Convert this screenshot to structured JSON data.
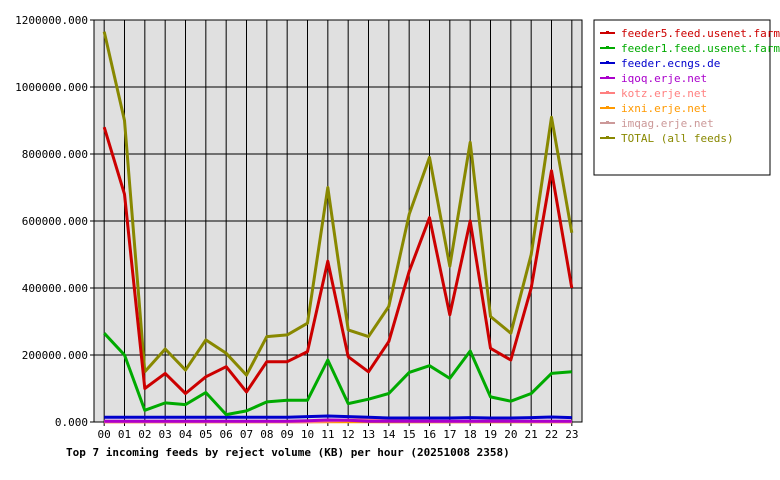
{
  "chart_data": {
    "type": "line",
    "title": "Top 7 incoming feeds by reject volume (KB) per hour (20251008 2358)",
    "xlabel": "",
    "ylabel": "",
    "categories": [
      "00",
      "01",
      "02",
      "03",
      "04",
      "05",
      "06",
      "07",
      "08",
      "09",
      "10",
      "11",
      "12",
      "13",
      "14",
      "15",
      "16",
      "17",
      "18",
      "19",
      "20",
      "21",
      "22",
      "23"
    ],
    "y_ticks": [
      "0.000",
      "200000.000",
      "400000.000",
      "600000.000",
      "800000.000",
      "1000000.000",
      "1200000.000"
    ],
    "ylim": [
      0,
      1200000
    ],
    "grid": true,
    "plot_background": "#e0e0e0",
    "legend_position": "right",
    "series": [
      {
        "name": "feeder5.feed.usenet.farm",
        "color": "#cc0000",
        "values": [
          880000,
          680000,
          100000,
          145000,
          85000,
          135000,
          165000,
          90000,
          180000,
          180000,
          210000,
          480000,
          195000,
          150000,
          240000,
          450000,
          610000,
          320000,
          600000,
          220000,
          185000,
          400000,
          750000,
          400000
        ]
      },
      {
        "name": "feeder1.feed.usenet.farm",
        "color": "#00aa00",
        "values": [
          265000,
          200000,
          35000,
          57000,
          52000,
          88000,
          22000,
          33000,
          60000,
          65000,
          65000,
          185000,
          55000,
          68000,
          85000,
          148000,
          168000,
          130000,
          212000,
          75000,
          62000,
          85000,
          145000,
          150000
        ]
      },
      {
        "name": "feeder.ecngs.de",
        "color": "#0000cc",
        "values": [
          14000,
          14000,
          14000,
          14000,
          14000,
          14000,
          14000,
          14000,
          14000,
          14000,
          16000,
          18000,
          16000,
          14000,
          12000,
          12000,
          12000,
          12000,
          13000,
          12000,
          12000,
          13000,
          15000,
          13000
        ]
      },
      {
        "name": "iqoq.erje.net",
        "color": "#aa00cc",
        "values": [
          2000,
          2000,
          2000,
          2000,
          2000,
          2000,
          2000,
          2000,
          2000,
          2000,
          4000,
          6000,
          5000,
          2000,
          2000,
          2000,
          2000,
          2000,
          2000,
          2000,
          2000,
          2000,
          2000,
          2000
        ]
      },
      {
        "name": "kotz.erje.net",
        "color": "#ff8080",
        "values": [
          1000,
          1000,
          1000,
          1000,
          1000,
          1000,
          1000,
          1000,
          1000,
          1000,
          1000,
          3000,
          5000,
          8000,
          4000,
          2000,
          2000,
          1000,
          1000,
          3000,
          2000,
          1000,
          1000,
          1000
        ]
      },
      {
        "name": "ixni.erje.net",
        "color": "#ff9900",
        "values": [
          500,
          500,
          500,
          500,
          500,
          500,
          500,
          500,
          500,
          500,
          500,
          500,
          500,
          500,
          500,
          500,
          500,
          500,
          500,
          500,
          500,
          500,
          500,
          500
        ]
      },
      {
        "name": "imqag.erje.net",
        "color": "#cc9999",
        "values": [
          800,
          800,
          800,
          800,
          800,
          800,
          800,
          800,
          800,
          800,
          800,
          1500,
          1500,
          1500,
          800,
          800,
          800,
          800,
          800,
          800,
          800,
          800,
          800,
          800
        ]
      },
      {
        "name": "TOTAL (all feeds)",
        "color": "#888800",
        "values": [
          1165000,
          900000,
          150000,
          218000,
          155000,
          245000,
          205000,
          140000,
          255000,
          260000,
          295000,
          700000,
          275000,
          255000,
          345000,
          620000,
          790000,
          465000,
          835000,
          315000,
          265000,
          500000,
          910000,
          565000
        ]
      }
    ]
  }
}
